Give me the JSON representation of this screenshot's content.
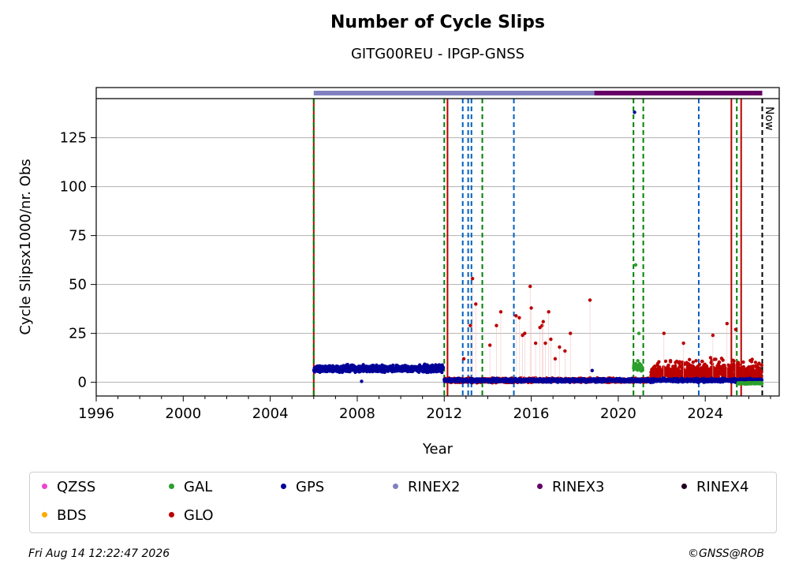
{
  "chart_data": {
    "type": "scatter",
    "title": "Number of Cycle Slips",
    "subtitle": "GITG00REU - IPGP-GNSS",
    "xlabel": "Year",
    "ylabel": "Cycle Slipsx1000/nr. Obs",
    "xlim": [
      1996,
      2027.4
    ],
    "ylim": [
      -7,
      145
    ],
    "xticks": [
      1996,
      2000,
      2004,
      2008,
      2012,
      2016,
      2020,
      2024
    ],
    "yticks": [
      0,
      25,
      50,
      75,
      100,
      125
    ],
    "grid": "horizontal",
    "legend_placement": "bottom",
    "now_label": "Now",
    "now_year": 2026.62,
    "colors": {
      "QZSS": "#ee44cc",
      "BDS": "#ffaa00",
      "GAL": "#2ca02c",
      "GLO": "#bb0000",
      "GPS": "#000099",
      "RINEX2": "#8080c0",
      "RINEX3": "#660066",
      "RINEX4": "#220022"
    },
    "rinex_bars": [
      {
        "name": "RINEX2",
        "start": 2006.0,
        "end": 2018.9
      },
      {
        "name": "RINEX3",
        "start": 2018.9,
        "end": 2026.62
      }
    ],
    "event_lines": [
      {
        "x": 2006.0,
        "style": "solid",
        "color": "#bb0000"
      },
      {
        "x": 2006.0,
        "style": "dashed",
        "color": "#008000"
      },
      {
        "x": 2012.0,
        "style": "dashed",
        "color": "#008000"
      },
      {
        "x": 2012.15,
        "style": "solid",
        "color": "#bb0000"
      },
      {
        "x": 2012.85,
        "style": "dashed",
        "color": "#005fbf"
      },
      {
        "x": 2013.1,
        "style": "dashed",
        "color": "#005fbf"
      },
      {
        "x": 2013.25,
        "style": "dashed",
        "color": "#005fbf"
      },
      {
        "x": 2013.75,
        "style": "dashed",
        "color": "#008000"
      },
      {
        "x": 2015.2,
        "style": "dashed",
        "color": "#005fbf"
      },
      {
        "x": 2020.7,
        "style": "dashed",
        "color": "#008000"
      },
      {
        "x": 2021.15,
        "style": "dashed",
        "color": "#008000"
      },
      {
        "x": 2023.7,
        "style": "dashed",
        "color": "#005fbf"
      },
      {
        "x": 2025.2,
        "style": "solid",
        "color": "#bb0000"
      },
      {
        "x": 2025.45,
        "style": "dashed",
        "color": "#008000"
      },
      {
        "x": 2025.65,
        "style": "solid",
        "color": "#bb0000"
      },
      {
        "x": 2026.62,
        "style": "dashed",
        "color": "#000000"
      }
    ],
    "series": [
      {
        "name": "GPS",
        "bands": [
          {
            "x_start": 2006.0,
            "x_end": 2011.95,
            "y_center": 7,
            "spread": 2.5
          },
          {
            "x_start": 2012.0,
            "x_end": 2026.6,
            "y_center": 1,
            "spread": 1.2
          }
        ],
        "outliers": [
          [
            2008.2,
            0.5
          ],
          [
            2020.75,
            138
          ],
          [
            2018.8,
            6
          ],
          [
            2021.0,
            8
          ]
        ]
      },
      {
        "name": "GLO",
        "bands": [
          {
            "x_start": 2012.0,
            "x_end": 2021.5,
            "y_center": 1,
            "spread": 1.5
          },
          {
            "x_start": 2021.5,
            "x_end": 2026.6,
            "y_center": 6,
            "spread": 6
          }
        ],
        "outliers": [
          [
            2012.9,
            12
          ],
          [
            2013.3,
            53
          ],
          [
            2013.45,
            40
          ],
          [
            2013.2,
            29
          ],
          [
            2014.1,
            19
          ],
          [
            2014.4,
            29
          ],
          [
            2014.6,
            36
          ],
          [
            2015.3,
            34
          ],
          [
            2015.45,
            33
          ],
          [
            2015.6,
            24
          ],
          [
            2015.7,
            25
          ],
          [
            2015.95,
            49
          ],
          [
            2016.0,
            38
          ],
          [
            2016.2,
            20
          ],
          [
            2016.4,
            28
          ],
          [
            2016.5,
            29
          ],
          [
            2016.55,
            31
          ],
          [
            2016.65,
            20
          ],
          [
            2016.8,
            36
          ],
          [
            2016.9,
            22
          ],
          [
            2017.1,
            12
          ],
          [
            2017.3,
            18
          ],
          [
            2017.55,
            16
          ],
          [
            2017.8,
            25
          ],
          [
            2018.7,
            42
          ],
          [
            2022.1,
            25
          ],
          [
            2023.0,
            20
          ],
          [
            2024.35,
            24
          ],
          [
            2025.0,
            30
          ],
          [
            2025.4,
            27
          ]
        ]
      },
      {
        "name": "GAL",
        "bands": [
          {
            "x_start": 2020.7,
            "x_end": 2021.1,
            "y_center": 8,
            "spread": 3
          },
          {
            "x_start": 2025.5,
            "x_end": 2026.6,
            "y_center": -0.5,
            "spread": 0.5
          }
        ],
        "outliers": [
          [
            2020.8,
            60
          ],
          [
            2020.95,
            25
          ],
          [
            2020.9,
            11
          ]
        ]
      },
      {
        "name": "QZSS",
        "bands": [],
        "outliers": []
      },
      {
        "name": "BDS",
        "bands": [],
        "outliers": []
      }
    ],
    "legend": [
      {
        "label": "QZSS",
        "color": "#ee44cc"
      },
      {
        "label": "GAL",
        "color": "#2ca02c"
      },
      {
        "label": "GPS",
        "color": "#000099"
      },
      {
        "label": "RINEX2",
        "color": "#8080c0"
      },
      {
        "label": "RINEX3",
        "color": "#660066"
      },
      {
        "label": "RINEX4",
        "color": "#220022"
      },
      {
        "label": "BDS",
        "color": "#ffaa00"
      },
      {
        "label": "GLO",
        "color": "#bb0000"
      }
    ]
  },
  "footer": {
    "date": "Fri Aug 14 12:22:47 2026",
    "credit": "©GNSS@ROB"
  }
}
